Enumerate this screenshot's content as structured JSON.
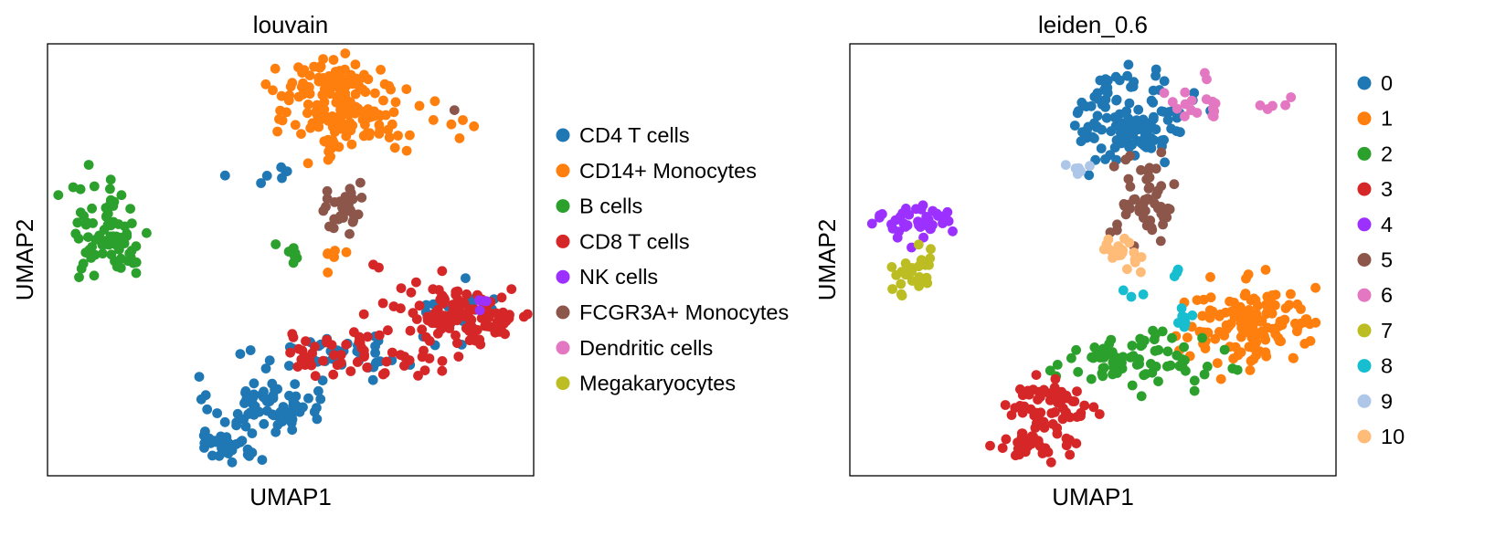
{
  "chart_data": [
    {
      "type": "scatter",
      "title": "louvain",
      "xlabel": "UMAP1",
      "ylabel": "UMAP2",
      "xlim": [
        0,
        10
      ],
      "ylim": [
        0,
        10
      ],
      "grid": false,
      "legend_position": "right",
      "ticks_shown": false,
      "series": [
        {
          "name": "CD4 T cells",
          "color": "#1f77b4",
          "clusters": [
            {
              "cx": 4.5,
              "cy": 1.65,
              "rx": 0.95,
              "ry": 0.55,
              "n": 70
            },
            {
              "cx": 3.7,
              "cy": 0.75,
              "rx": 0.65,
              "ry": 0.35,
              "n": 35
            },
            {
              "cx": 6.0,
              "cy": 2.85,
              "rx": 1.4,
              "ry": 0.4,
              "n": 40
            },
            {
              "cx": 8.6,
              "cy": 3.8,
              "rx": 0.9,
              "ry": 0.5,
              "n": 18
            },
            {
              "cx": 4.5,
              "cy": 7.0,
              "rx": 0.5,
              "ry": 0.2,
              "n": 7
            }
          ]
        },
        {
          "name": "CD14+ Monocytes",
          "color": "#ff7f0e",
          "clusters": [
            {
              "cx": 6.2,
              "cy": 8.4,
              "rx": 0.95,
              "ry": 0.85,
              "n": 150
            },
            {
              "cx": 5.6,
              "cy": 9.2,
              "rx": 1.0,
              "ry": 0.4,
              "n": 40
            },
            {
              "cx": 8.2,
              "cy": 8.2,
              "rx": 0.8,
              "ry": 0.3,
              "n": 6
            },
            {
              "cx": 5.7,
              "cy": 5.1,
              "rx": 0.4,
              "ry": 0.4,
              "n": 6
            }
          ]
        },
        {
          "name": "B cells",
          "color": "#2ca02c",
          "clusters": [
            {
              "cx": 1.3,
              "cy": 5.6,
              "rx": 0.7,
              "ry": 0.95,
              "n": 75
            },
            {
              "cx": 5.1,
              "cy": 5.2,
              "rx": 0.25,
              "ry": 0.25,
              "n": 8
            }
          ]
        },
        {
          "name": "CD8 T cells",
          "color": "#d62728",
          "clusters": [
            {
              "cx": 8.6,
              "cy": 3.75,
              "rx": 1.2,
              "ry": 0.55,
              "n": 120
            },
            {
              "cx": 6.2,
              "cy": 2.85,
              "rx": 1.5,
              "ry": 0.45,
              "n": 55
            },
            {
              "cx": 6.8,
              "cy": 4.7,
              "rx": 0.3,
              "ry": 0.2,
              "n": 2
            }
          ]
        },
        {
          "name": "NK cells",
          "color": "#9b30ff",
          "clusters": [
            {
              "cx": 8.95,
              "cy": 4.0,
              "rx": 0.15,
              "ry": 0.15,
              "n": 4
            }
          ]
        },
        {
          "name": "FCGR3A+ Monocytes",
          "color": "#8c564b",
          "clusters": [
            {
              "cx": 6.1,
              "cy": 6.1,
              "rx": 0.4,
              "ry": 0.45,
              "n": 30
            },
            {
              "cx": 8.3,
              "cy": 8.5,
              "rx": 0.05,
              "ry": 0.05,
              "n": 1
            }
          ]
        },
        {
          "name": "Dendritic cells",
          "color": "#e377c2",
          "clusters": []
        },
        {
          "name": "Megakaryocytes",
          "color": "#bcbd22",
          "clusters": []
        }
      ]
    },
    {
      "type": "scatter",
      "title": "leiden_0.6",
      "xlabel": "UMAP1",
      "ylabel": "UMAP2",
      "xlim": [
        0,
        10
      ],
      "ylim": [
        0,
        10
      ],
      "grid": false,
      "legend_position": "right",
      "ticks_shown": false,
      "series": [
        {
          "name": "0",
          "color": "#1f77b4",
          "clusters": [
            {
              "cx": 5.8,
              "cy": 8.3,
              "rx": 0.95,
              "ry": 0.9,
              "n": 130
            }
          ]
        },
        {
          "name": "1",
          "color": "#ff7f0e",
          "clusters": [
            {
              "cx": 8.3,
              "cy": 3.5,
              "rx": 1.15,
              "ry": 0.75,
              "n": 140
            }
          ]
        },
        {
          "name": "2",
          "color": "#2ca02c",
          "clusters": [
            {
              "cx": 5.7,
              "cy": 2.65,
              "rx": 1.3,
              "ry": 0.5,
              "n": 85
            }
          ]
        },
        {
          "name": "3",
          "color": "#d62728",
          "clusters": [
            {
              "cx": 4.2,
              "cy": 1.6,
              "rx": 0.75,
              "ry": 0.55,
              "n": 60
            },
            {
              "cx": 3.75,
              "cy": 0.75,
              "rx": 0.65,
              "ry": 0.35,
              "n": 30
            }
          ]
        },
        {
          "name": "4",
          "color": "#9b30ff",
          "clusters": [
            {
              "cx": 1.3,
              "cy": 5.9,
              "rx": 0.65,
              "ry": 0.45,
              "n": 40
            }
          ]
        },
        {
          "name": "5",
          "color": "#8c564b",
          "clusters": [
            {
              "cx": 6.1,
              "cy": 6.4,
              "rx": 0.5,
              "ry": 0.75,
              "n": 55
            }
          ]
        },
        {
          "name": "6",
          "color": "#e377c2",
          "clusters": [
            {
              "cx": 7.4,
              "cy": 8.7,
              "rx": 0.8,
              "ry": 0.4,
              "n": 18
            },
            {
              "cx": 8.6,
              "cy": 8.5,
              "rx": 0.6,
              "ry": 0.3,
              "n": 5
            }
          ]
        },
        {
          "name": "7",
          "color": "#bcbd22",
          "clusters": [
            {
              "cx": 1.3,
              "cy": 4.7,
              "rx": 0.4,
              "ry": 0.55,
              "n": 25
            }
          ]
        },
        {
          "name": "8",
          "color": "#17becf",
          "clusters": [
            {
              "cx": 6.85,
              "cy": 3.6,
              "rx": 0.3,
              "ry": 0.2,
              "n": 7
            },
            {
              "cx": 5.8,
              "cy": 4.2,
              "rx": 0.15,
              "ry": 0.1,
              "n": 3
            },
            {
              "cx": 6.7,
              "cy": 4.9,
              "rx": 0.1,
              "ry": 0.3,
              "n": 3
            }
          ]
        },
        {
          "name": "9",
          "color": "#aec7e8",
          "clusters": [
            {
              "cx": 4.7,
              "cy": 7.05,
              "rx": 0.3,
              "ry": 0.15,
              "n": 6
            }
          ]
        },
        {
          "name": "10",
          "color": "#ffbb78",
          "clusters": [
            {
              "cx": 5.6,
              "cy": 5.2,
              "rx": 0.45,
              "ry": 0.45,
              "n": 20
            }
          ]
        }
      ]
    }
  ]
}
